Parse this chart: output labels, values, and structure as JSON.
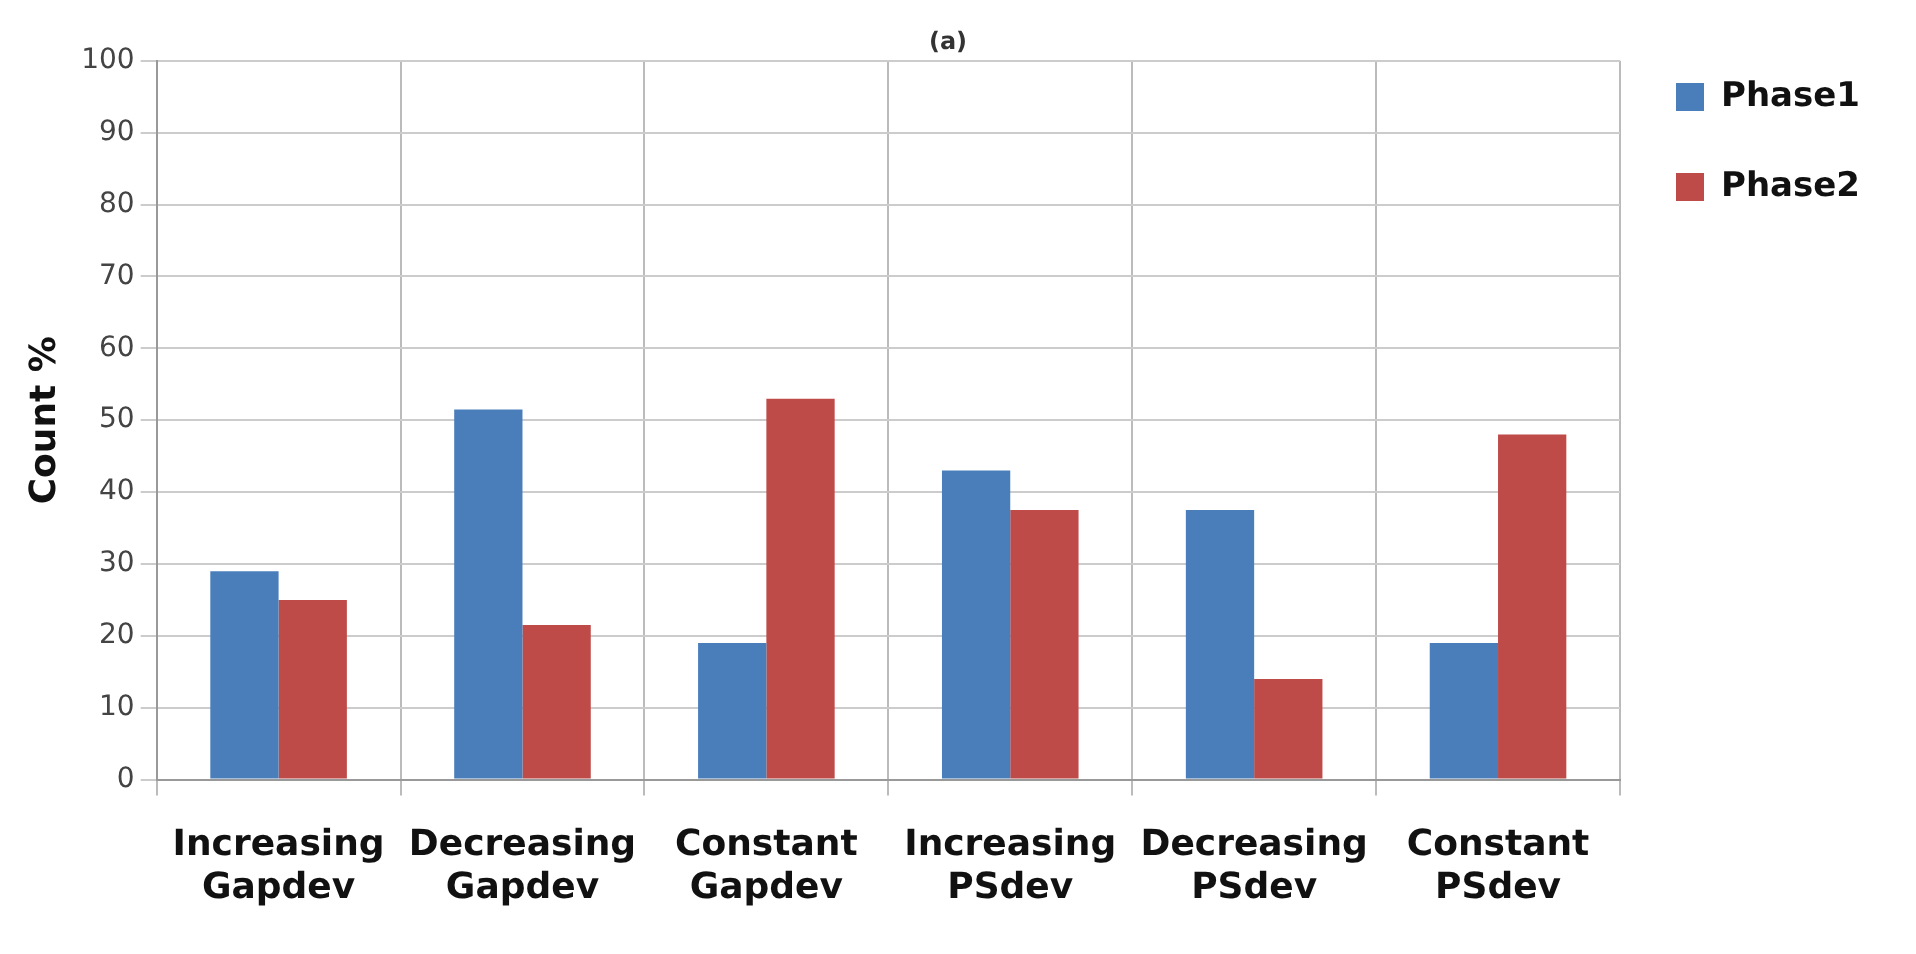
{
  "chart_data": {
    "type": "bar",
    "title": "(a)",
    "ylabel": "Count %",
    "categories": [
      "Increasing Gapdev",
      "Decreasing Gapdev",
      "Constant Gapdev",
      "Increasing PSdev",
      "Decreasing PSdev",
      "Constant PSdev"
    ],
    "series": [
      {
        "name": "Phase1",
        "color": "#4a7ebb",
        "values": [
          29,
          51.5,
          19,
          43,
          37.5,
          19
        ]
      },
      {
        "name": "Phase2",
        "color": "#be4b48",
        "values": [
          25,
          21.5,
          53,
          37.5,
          14,
          48
        ]
      }
    ],
    "ylim": [
      0,
      100
    ],
    "yticks": [
      0,
      10,
      20,
      30,
      40,
      50,
      60,
      70,
      80,
      90,
      100
    ],
    "grid": true,
    "legend": "top right"
  }
}
